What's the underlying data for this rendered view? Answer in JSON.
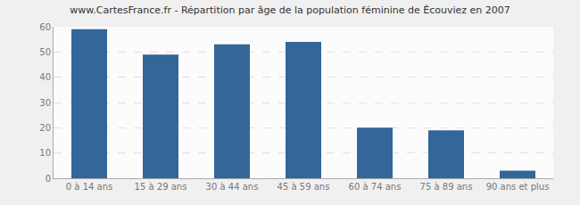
{
  "chart_data": {
    "type": "bar",
    "title": "www.CartesFrance.fr - Répartition par âge de la population féminine de Écouviez en 2007",
    "categories": [
      "0 à 14 ans",
      "15 à 29 ans",
      "30 à 44 ans",
      "45 à 59 ans",
      "60 à 74 ans",
      "75 à 89 ans",
      "90 ans et plus"
    ],
    "values": [
      59,
      49,
      53,
      54,
      20,
      19,
      3
    ],
    "color": "#336699",
    "ylim": [
      0,
      60
    ],
    "yticks": [
      0,
      10,
      20,
      30,
      40,
      50,
      60
    ],
    "grid": true
  }
}
